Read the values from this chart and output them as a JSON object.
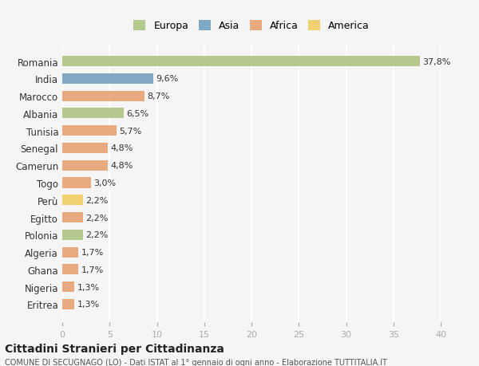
{
  "countries": [
    "Romania",
    "India",
    "Marocco",
    "Albania",
    "Tunisia",
    "Senegal",
    "Camerun",
    "Togo",
    "Perù",
    "Egitto",
    "Polonia",
    "Algeria",
    "Ghana",
    "Nigeria",
    "Eritrea"
  ],
  "values": [
    37.8,
    9.6,
    8.7,
    6.5,
    5.7,
    4.8,
    4.8,
    3.0,
    2.2,
    2.2,
    2.2,
    1.7,
    1.7,
    1.3,
    1.3
  ],
  "labels": [
    "37,8%",
    "9,6%",
    "8,7%",
    "6,5%",
    "5,7%",
    "4,8%",
    "4,8%",
    "3,0%",
    "2,2%",
    "2,2%",
    "2,2%",
    "1,7%",
    "1,7%",
    "1,3%",
    "1,3%"
  ],
  "continents": [
    "Europa",
    "Asia",
    "Africa",
    "Europa",
    "Africa",
    "Africa",
    "Africa",
    "Africa",
    "America",
    "Africa",
    "Europa",
    "Africa",
    "Africa",
    "Africa",
    "Africa"
  ],
  "continent_colors": {
    "Europa": "#b5c98e",
    "Asia": "#7ea8c4",
    "Africa": "#e8aa7e",
    "America": "#f0d070"
  },
  "legend_order": [
    "Europa",
    "Asia",
    "Africa",
    "America"
  ],
  "title": "Cittadini Stranieri per Cittadinanza",
  "subtitle": "COMUNE DI SECUGNAGO (LO) - Dati ISTAT al 1° gennaio di ogni anno - Elaborazione TUTTITALIA.IT",
  "xlim": [
    0,
    40
  ],
  "xticks": [
    0,
    5,
    10,
    15,
    20,
    25,
    30,
    35,
    40
  ],
  "background_color": "#f5f5f5",
  "grid_color": "#ffffff",
  "bar_height": 0.6
}
